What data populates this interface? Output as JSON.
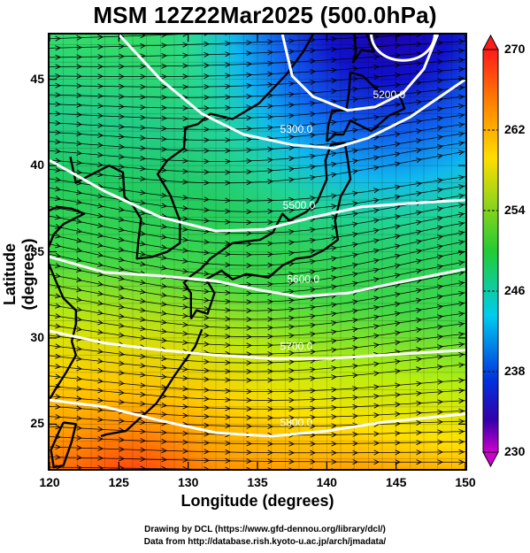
{
  "title": "MSM 12Z22Mar2025 (500.0hPa)",
  "axes": {
    "xlabel": "Longitude (degrees)",
    "ylabel": "Latitude  (degrees)",
    "xticks": [
      "120",
      "125",
      "130",
      "135",
      "140",
      "145",
      "150"
    ],
    "yticks": [
      "25",
      "30",
      "35",
      "40",
      "45"
    ]
  },
  "colorbar": {
    "labels": [
      "270",
      "262",
      "254",
      "246",
      "238",
      "230"
    ],
    "colors": [
      "#ff1a1a",
      "#ff8800",
      "#ffdd00",
      "#22cc33",
      "#00ccee",
      "#0033dd",
      "#3300aa",
      "#cc00cc"
    ]
  },
  "contours": [
    {
      "label": "5200.0"
    },
    {
      "label": "5300.0"
    },
    {
      "label": "5500.0"
    },
    {
      "label": "5600.0"
    },
    {
      "label": "5700.0"
    },
    {
      "label": "5800.0"
    }
  ],
  "credits": {
    "line1": "Drawing by DCL (https://www.gfd-dennou.org/library/dcl/)",
    "line2": "Data from http://database.rish.kyoto-u.ac.jp/arch/jmadata/"
  },
  "chart_data": {
    "type": "heatmap",
    "title": "MSM 12Z22Mar2025 (500.0hPa)",
    "xlabel": "Longitude (degrees)",
    "ylabel": "Latitude  (degrees)",
    "xlim": [
      120,
      150
    ],
    "ylim": [
      22.4,
      47.6
    ],
    "colorbar_range": [
      230,
      270
    ],
    "colorbar_ticks": [
      270,
      262,
      254,
      246,
      238,
      230
    ],
    "contour_levels": [
      5200,
      5300,
      5500,
      5600,
      5700,
      5800
    ],
    "vectors": "streamlines west-to-east"
  }
}
